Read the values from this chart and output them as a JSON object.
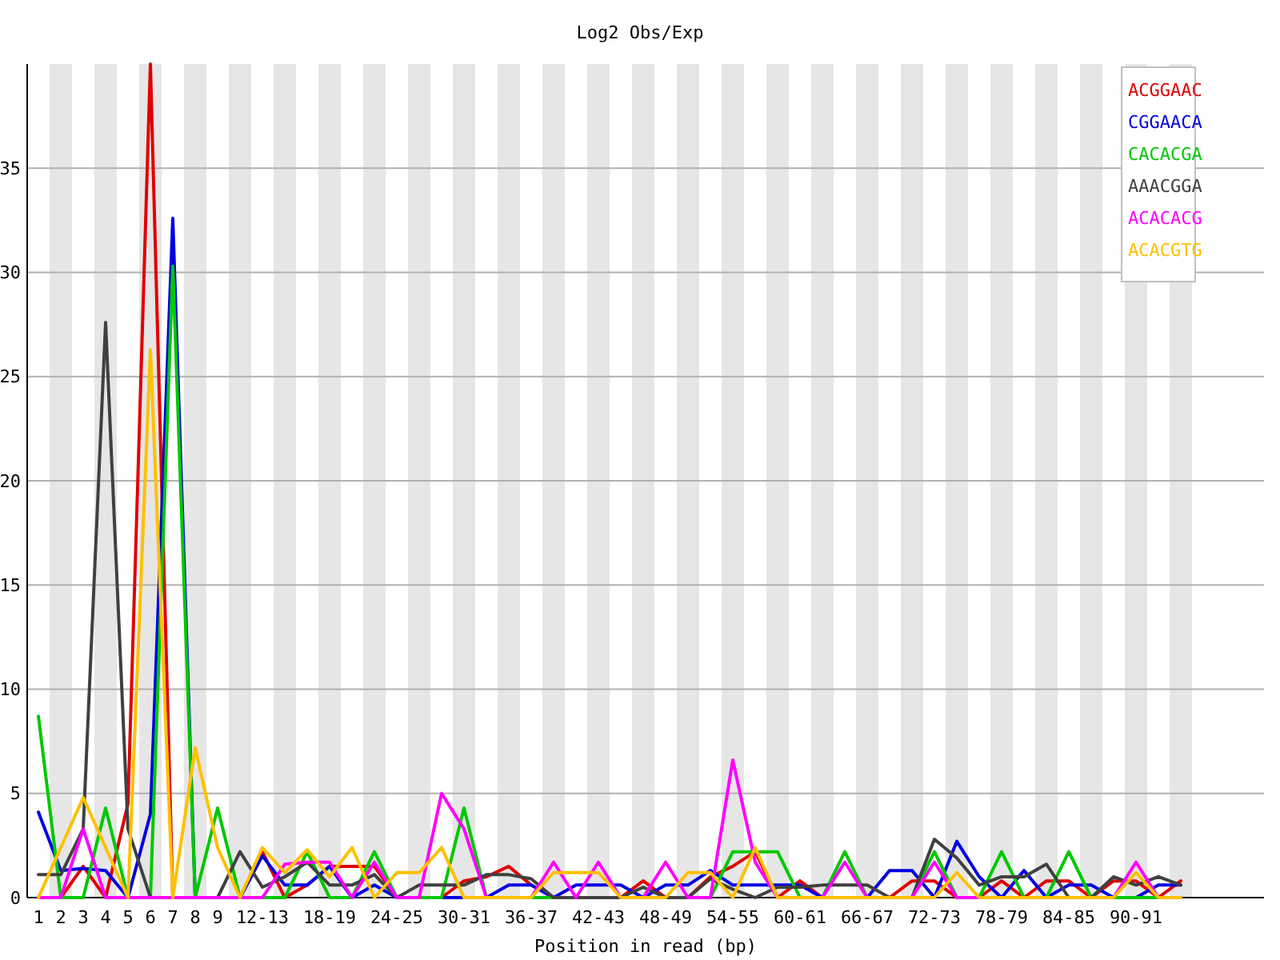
{
  "chart_data": {
    "type": "line",
    "title": "Log2 Obs/Exp",
    "xlabel": "Position in read (bp)",
    "categories": [
      "1",
      "2",
      "3",
      "4",
      "5",
      "6",
      "7",
      "8",
      "9",
      null,
      "12-13",
      null,
      null,
      "18-19",
      null,
      null,
      "24-25",
      null,
      null,
      "30-31",
      null,
      null,
      "36-37",
      null,
      null,
      "42-43",
      null,
      null,
      "48-49",
      null,
      null,
      "54-55",
      null,
      null,
      "60-61",
      null,
      null,
      "66-67",
      null,
      null,
      "72-73",
      null,
      null,
      "78-79",
      null,
      null,
      "84-85",
      null,
      null,
      "90-91",
      null,
      null
    ],
    "series": [
      {
        "name": "ACGGAAC",
        "color": "#e00000",
        "values": [
          0,
          0,
          1.5,
          0,
          4.5,
          40,
          0,
          0,
          0,
          0,
          2.2,
          0,
          0.6,
          1.5,
          1.5,
          1.5,
          0,
          0,
          0,
          0.8,
          1.0,
          1.5,
          0.6,
          0,
          0,
          0,
          0,
          0.8,
          0,
          0,
          1.0,
          1.5,
          2.2,
          0,
          0.8,
          0,
          0,
          0,
          0,
          0.8,
          0.8,
          0,
          0,
          0.8,
          0,
          0.8,
          0.8,
          0,
          0.8,
          0.8,
          0,
          0.8
        ]
      },
      {
        "name": "CGGAACA",
        "color": "#0000e0",
        "values": [
          4.1,
          1.3,
          1.4,
          1.3,
          0,
          4,
          32.6,
          0,
          0,
          0,
          2.0,
          0.6,
          0.6,
          1.5,
          0,
          0.6,
          0,
          0,
          0,
          0,
          0,
          0.6,
          0.6,
          0,
          0.6,
          0.6,
          0.6,
          0,
          0.6,
          0.6,
          1.3,
          0.6,
          0.6,
          0.6,
          0.6,
          0,
          0,
          0,
          1.3,
          1.3,
          0,
          2.7,
          1.0,
          0,
          1.3,
          0,
          0.6,
          0.6,
          0,
          0,
          0.6,
          0.6
        ]
      },
      {
        "name": "CACACGA",
        "color": "#00c800",
        "values": [
          8.7,
          0,
          0,
          4.3,
          0,
          0,
          30.3,
          0,
          4.3,
          0,
          0,
          0,
          2.2,
          0,
          0,
          2.2,
          0,
          0,
          0,
          4.3,
          0,
          0,
          0,
          0,
          0,
          0,
          0,
          0,
          0,
          0,
          0,
          2.2,
          2.2,
          2.2,
          0,
          0,
          2.2,
          0,
          0,
          0,
          2.2,
          0,
          0,
          2.2,
          0,
          0,
          2.2,
          0,
          0,
          0,
          0,
          0
        ]
      },
      {
        "name": "AAACGGA",
        "color": "#404040",
        "values": [
          1.1,
          1.1,
          3.3,
          27.6,
          3.3,
          0,
          0,
          0,
          0,
          2.2,
          0.5,
          1.0,
          1.7,
          0.6,
          0.6,
          1.1,
          0,
          0.6,
          0.6,
          0.6,
          1.1,
          1.1,
          0.9,
          0,
          0,
          0,
          0,
          0.5,
          0,
          0,
          0.9,
          0.4,
          0,
          0.5,
          0.5,
          0.6,
          0.6,
          0.6,
          0,
          0,
          2.8,
          1.9,
          0.6,
          1.0,
          1.0,
          1.6,
          0,
          0,
          1.0,
          0.6,
          1.0,
          0.6
        ]
      },
      {
        "name": "ACACACG",
        "color": "#ff00ff",
        "values": [
          0,
          0,
          3.3,
          0,
          0,
          0,
          0,
          0,
          0,
          0,
          0,
          1.6,
          1.7,
          1.7,
          0,
          1.7,
          0,
          0,
          5.0,
          3.3,
          0,
          0,
          0,
          1.7,
          0,
          1.7,
          0,
          0,
          1.7,
          0,
          0,
          6.6,
          1.7,
          0,
          0,
          0,
          1.7,
          0,
          0,
          0,
          1.7,
          0,
          0,
          0,
          0,
          0,
          0,
          0,
          0,
          1.7,
          0,
          0
        ]
      },
      {
        "name": "ACACGTG",
        "color": "#ffc000",
        "values": [
          0,
          2.4,
          4.8,
          2.4,
          0,
          26.3,
          0,
          7.2,
          2.4,
          0,
          2.4,
          1.2,
          2.3,
          1.0,
          2.4,
          0,
          1.2,
          1.2,
          2.4,
          0,
          0,
          0,
          0,
          1.2,
          1.2,
          1.2,
          0,
          0,
          0,
          1.2,
          1.2,
          0,
          2.4,
          0,
          0,
          0,
          0,
          0,
          0,
          0,
          0,
          1.2,
          0,
          0,
          0,
          0,
          0,
          0,
          0,
          1.2,
          0,
          0
        ]
      }
    ],
    "ylim": [
      0,
      40
    ],
    "yticks": [
      0,
      5,
      10,
      15,
      20,
      25,
      30,
      35
    ],
    "grid": "y",
    "legend": "top right"
  }
}
